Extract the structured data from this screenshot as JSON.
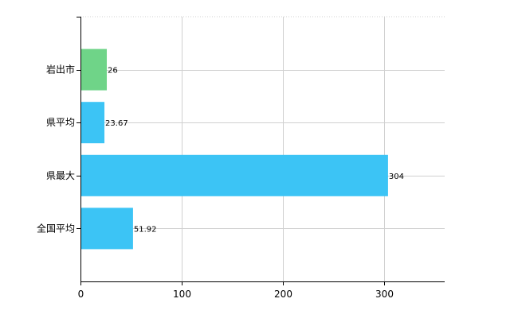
{
  "chart_data": {
    "type": "bar",
    "orientation": "horizontal",
    "categories": [
      "岩出市",
      "県平均",
      "県最大",
      "全国平均"
    ],
    "values": [
      26,
      23.67,
      304,
      51.92
    ],
    "value_labels": [
      "26",
      "23.67",
      "304",
      "51.92"
    ],
    "bar_colors": [
      "#6fd488",
      "#3cc4f5",
      "#3cc4f5",
      "#3cc4f5"
    ],
    "xlim": [
      0,
      360
    ],
    "xticks": [
      0,
      100,
      200,
      300
    ],
    "xtick_labels": [
      "0",
      "100",
      "200",
      "300"
    ],
    "grid": true,
    "grid_color": "#d0d0d0",
    "axis_color": "#000000",
    "title": "",
    "xlabel": "",
    "ylabel": ""
  }
}
